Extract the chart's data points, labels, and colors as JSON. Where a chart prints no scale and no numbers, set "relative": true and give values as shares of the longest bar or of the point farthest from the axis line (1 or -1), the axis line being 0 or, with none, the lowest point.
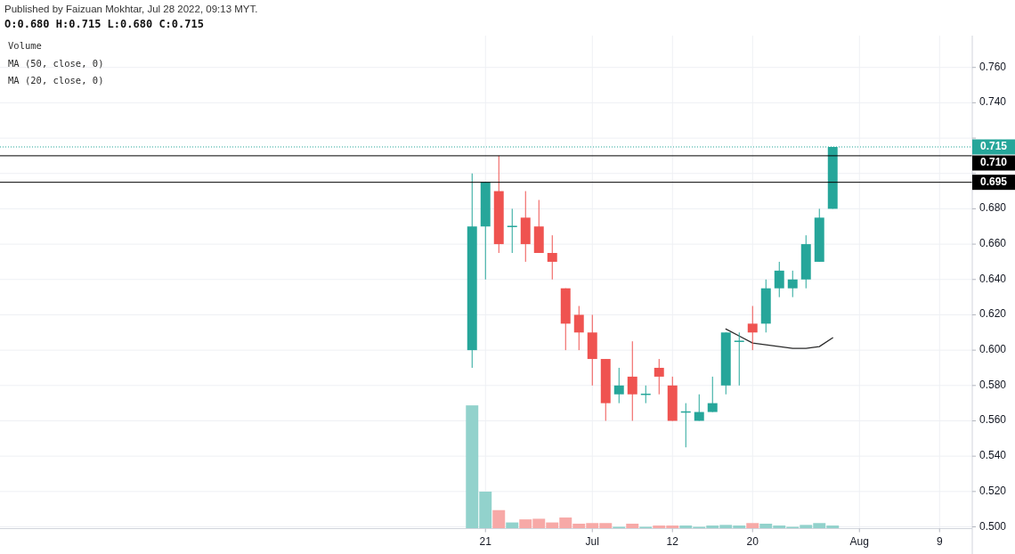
{
  "chart_data": [
    {
      "type": "candlestick",
      "annotations": [
        "Published by Faizuan Mokhtar, Jul 28 2022, 09:13 MYT.",
        "O:0.680 H:0.715 L:0.680 C:0.715",
        "Volume"
      ],
      "categories": [
        null,
        null,
        null,
        null,
        null,
        null,
        null,
        null,
        null,
        null,
        null,
        null,
        null,
        null,
        null,
        null,
        null,
        null,
        null,
        null,
        null,
        null,
        null,
        null,
        null,
        null,
        null,
        null,
        null,
        null,
        null,
        null,
        null,
        null,
        null,
        null
      ],
      "tick_labels": "y",
      "ylim": [
        0.499,
        0.778
      ],
      "yticks": [
        {
          "value": 0.5,
          "label": "0.500"
        },
        {
          "value": 0.52,
          "label": "0.520"
        },
        {
          "value": 0.54,
          "label": "0.540"
        },
        {
          "value": 0.56,
          "label": "0.560"
        },
        {
          "value": 0.58,
          "label": "0.580"
        },
        {
          "value": 0.6,
          "label": "0.600"
        },
        {
          "value": 0.62,
          "label": "0.620"
        },
        {
          "value": 0.64,
          "label": "0.640"
        },
        {
          "value": 0.66,
          "label": "0.660"
        },
        {
          "value": 0.68,
          "label": "0.680"
        },
        {
          "value": 0.7,
          "label": null
        },
        {
          "value": 0.72,
          "label": null
        },
        {
          "value": 0.74,
          "label": "0.740"
        },
        {
          "value": 0.76,
          "label": "0.760"
        }
      ],
      "grid": true,
      "legend": "top left",
      "series": [
        {
          "ohlc": [
            [
              0.6,
              0.7,
              0.59,
              0.67
            ],
            [
              0.67,
              0.695,
              0.64,
              0.695
            ],
            [
              0.69,
              0.71,
              0.655,
              0.66
            ],
            [
              0.67,
              0.68,
              0.655,
              0.67
            ],
            [
              0.675,
              0.69,
              0.65,
              0.66
            ],
            [
              0.67,
              0.685,
              0.655,
              0.655
            ],
            [
              0.655,
              0.665,
              0.64,
              0.65
            ],
            [
              0.635,
              0.635,
              0.6,
              0.615
            ],
            [
              0.62,
              0.625,
              0.6,
              0.61
            ],
            [
              0.61,
              0.62,
              0.58,
              0.595
            ],
            [
              0.595,
              0.595,
              0.56,
              0.57
            ],
            [
              0.575,
              0.59,
              0.57,
              0.58
            ],
            [
              0.585,
              0.605,
              0.56,
              0.575
            ],
            [
              0.575,
              0.58,
              0.57,
              0.575
            ],
            [
              0.59,
              0.595,
              0.575,
              0.585
            ],
            [
              0.58,
              0.585,
              0.56,
              0.56
            ],
            [
              0.565,
              0.57,
              0.545,
              0.565
            ],
            [
              0.56,
              0.575,
              0.56,
              0.565
            ],
            [
              0.565,
              0.585,
              0.565,
              0.57
            ],
            [
              0.58,
              0.61,
              0.575,
              0.61
            ],
            [
              0.605,
              0.61,
              0.58,
              0.605
            ],
            [
              0.615,
              0.625,
              0.6,
              0.61
            ],
            [
              0.615,
              0.64,
              0.61,
              0.635
            ],
            [
              0.635,
              0.65,
              0.63,
              0.645
            ],
            [
              0.635,
              0.645,
              0.63,
              0.64
            ],
            [
              0.64,
              0.665,
              0.635,
              0.66
            ],
            [
              0.65,
              0.68,
              0.65,
              0.675
            ],
            [
              0.68,
              0.715,
              0.68,
              0.715
            ],
            null,
            null,
            null,
            null,
            null,
            null,
            null,
            null
          ],
          "colors": [
            "#26a69a",
            "#26a69a",
            "#ef5350",
            "#26a69a",
            "#ef5350",
            "#ef5350",
            "#ef5350",
            "#ef5350",
            "#ef5350",
            "#ef5350",
            "#ef5350",
            "#26a69a",
            "#ef5350",
            "#26a69a",
            "#ef5350",
            "#ef5350",
            "#26a69a",
            "#26a69a",
            "#26a69a",
            "#26a69a",
            "#26a69a",
            "#ef5350",
            "#26a69a",
            "#26a69a",
            "#26a69a",
            "#26a69a",
            "#26a69a",
            "#26a69a",
            null,
            null,
            null,
            null,
            null,
            null,
            null,
            null
          ]
        },
        {
          "type": "line",
          "name": "MA (50, close, 0)",
          "color": "#2a2a2a",
          "values": [
            null,
            null,
            null,
            null,
            null,
            null,
            null,
            null,
            null,
            null,
            null,
            null,
            null,
            null,
            null,
            null,
            null,
            null,
            null,
            null,
            null,
            null,
            null,
            null,
            null,
            null,
            null,
            null,
            null,
            null,
            null,
            null,
            null,
            null,
            null,
            null
          ]
        },
        {
          "type": "line",
          "name": "MA (20, close, 0)",
          "color": "#2a2a2a",
          "values": [
            null,
            null,
            null,
            null,
            null,
            null,
            null,
            null,
            null,
            null,
            null,
            null,
            null,
            null,
            null,
            null,
            null,
            null,
            null,
            0.612,
            0.608,
            0.604,
            0.603,
            0.602,
            0.601,
            0.601,
            0.602,
            0.607,
            null,
            null,
            null,
            null,
            null,
            null,
            null,
            null
          ]
        }
      ],
      "ref_lines": [
        {
          "axis": "y",
          "value": 0.715,
          "label": "0.715",
          "color": "#26a69a",
          "line_style": "dotted"
        },
        {
          "axis": "y",
          "value": 0.71,
          "label": "0.710",
          "color": "#000000"
        },
        {
          "axis": "y",
          "value": 0.695,
          "label": "0.695",
          "color": "#000000"
        }
      ]
    },
    {
      "type": "bar",
      "relative": true,
      "tick_labels": "x",
      "categories": [
        null,
        "21",
        null,
        null,
        null,
        null,
        null,
        null,
        null,
        "Jul",
        null,
        null,
        null,
        null,
        null,
        "12",
        null,
        null,
        null,
        null,
        null,
        "20",
        null,
        null,
        null,
        null,
        null,
        null,
        null,
        "Aug",
        null,
        null,
        null,
        null,
        null,
        "9"
      ],
      "values": [
        1,
        0.3,
        0.15,
        0.05,
        0.075,
        0.08,
        0.05,
        0.09,
        0.04,
        0.045,
        0.045,
        0.015,
        0.04,
        0.015,
        0.025,
        0.025,
        0.025,
        0.015,
        0.025,
        0.03,
        0.025,
        0.045,
        0.04,
        0.025,
        0.015,
        0.03,
        0.045,
        0.025,
        null,
        null,
        null,
        null,
        null,
        null,
        null,
        null
      ],
      "colors": [
        "#92d2cc",
        "#92d2cc",
        "#f7a9a7",
        "#92d2cc",
        "#f7a9a7",
        "#f7a9a7",
        "#f7a9a7",
        "#f7a9a7",
        "#f7a9a7",
        "#f7a9a7",
        "#f7a9a7",
        "#92d2cc",
        "#f7a9a7",
        "#92d2cc",
        "#f7a9a7",
        "#f7a9a7",
        "#92d2cc",
        "#92d2cc",
        "#92d2cc",
        "#92d2cc",
        "#92d2cc",
        "#f7a9a7",
        "#92d2cc",
        "#92d2cc",
        "#92d2cc",
        "#92d2cc",
        "#92d2cc",
        "#92d2cc",
        null,
        null,
        null,
        null,
        null,
        null,
        null,
        null
      ]
    }
  ]
}
